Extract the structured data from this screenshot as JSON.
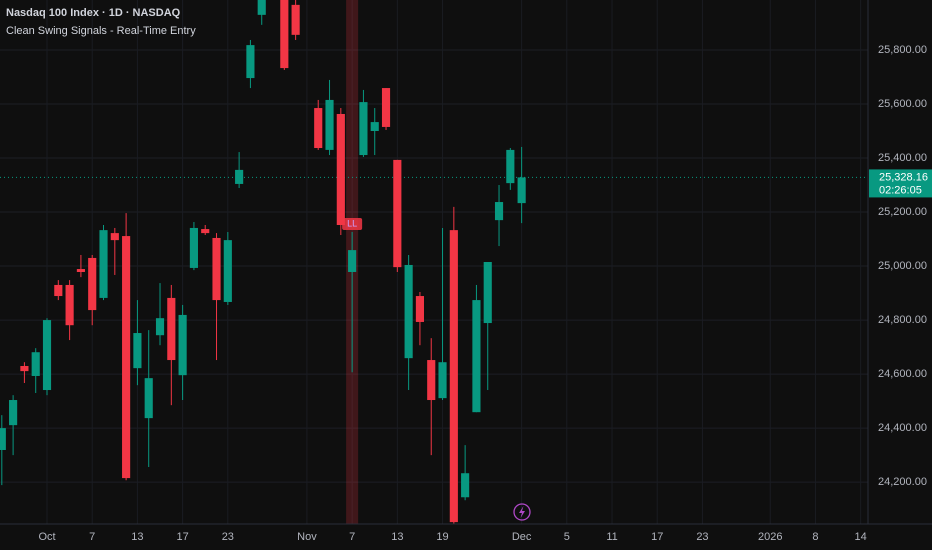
{
  "chart_data": {
    "type": "candlestick",
    "title": "Nasdaq 100 Index · 1D · NASDAQ",
    "subtitle": "Clean Swing Signals - Real-Time Entry",
    "up_color": "#089981",
    "down_color": "#f23645",
    "x": [
      -4,
      -3,
      -2,
      -1,
      0,
      1,
      2,
      3,
      4,
      5,
      6,
      7,
      8,
      9,
      10,
      11,
      12,
      13,
      14,
      15,
      16,
      17,
      18,
      19,
      21,
      22,
      24,
      25,
      26,
      27,
      28,
      29,
      30,
      31,
      32,
      33,
      34,
      35,
      36,
      37,
      38,
      39,
      40,
      41,
      42
    ],
    "open": [
      24319,
      24411,
      24630,
      24593,
      24541,
      24930,
      24930,
      24989,
      25030,
      24882,
      25122,
      25111,
      24622,
      24437,
      24744,
      24882,
      24596,
      24993,
      25137,
      25104,
      24867,
      25304,
      25696,
      25930,
      26000,
      25967,
      25585,
      25430,
      25563,
      24978,
      25411,
      25500,
      25659,
      25393,
      24659,
      24889,
      24652,
      24511,
      25133,
      24144,
      24459,
      24789,
      25170,
      25307,
      25233
    ],
    "high": [
      24448,
      24522,
      24644,
      24696,
      24807,
      24948,
      24948,
      25041,
      25041,
      25152,
      25141,
      25196,
      24874,
      24763,
      24937,
      24930,
      24856,
      25163,
      25152,
      25122,
      25126,
      25422,
      25837,
      26010,
      26050,
      26010,
      25615,
      25689,
      25585,
      25126,
      25652,
      25585,
      25659,
      25393,
      25041,
      24904,
      24733,
      25141,
      25219,
      24337,
      24930,
      25015,
      25300,
      25437,
      25441
    ],
    "low": [
      24189,
      24300,
      24567,
      24530,
      24522,
      24874,
      24726,
      24959,
      24781,
      24874,
      24967,
      24207,
      24559,
      24256,
      24707,
      24485,
      24504,
      24985,
      25115,
      24652,
      24856,
      25289,
      25659,
      25893,
      25726,
      25837,
      25430,
      25411,
      25115,
      24607,
      25404,
      25411,
      25504,
      24978,
      24541,
      24707,
      24300,
      24504,
      24045,
      24133,
      24459,
      24541,
      25074,
      25282,
      25159
    ],
    "close": [
      24400,
      24504,
      24611,
      24681,
      24800,
      24889,
      24781,
      24978,
      24837,
      25133,
      25096,
      24215,
      24752,
      24585,
      24807,
      24652,
      24819,
      25141,
      25122,
      24874,
      25096,
      25356,
      25818,
      26000,
      25733,
      25856,
      25437,
      25615,
      25152,
      25059,
      25607,
      25533,
      25515,
      24996,
      25004,
      24793,
      24504,
      24644,
      24052,
      24233,
      24874,
      25015,
      25237,
      25430,
      25328.16
    ],
    "last_price": {
      "value": 25328.16,
      "label": "25,328.16"
    },
    "countdown": "02:26:05",
    "signals": [
      {
        "x": 27,
        "text": "LL"
      }
    ],
    "xlim": [
      -4.16,
      72.65
    ],
    "ylim": [
      24045,
      25985
    ],
    "grid": true,
    "xticks": [
      {
        "value": 0,
        "label": "Oct"
      },
      {
        "value": 4,
        "label": "7"
      },
      {
        "value": 8,
        "label": "13"
      },
      {
        "value": 12,
        "label": "17"
      },
      {
        "value": 16,
        "label": "23"
      },
      {
        "value": 23,
        "label": "Nov"
      },
      {
        "value": 27,
        "label": "7"
      },
      {
        "value": 31,
        "label": "13"
      },
      {
        "value": 35,
        "label": "19"
      },
      {
        "value": 42,
        "label": "Dec"
      },
      {
        "value": 46,
        "label": "5"
      },
      {
        "value": 50,
        "label": "11"
      },
      {
        "value": 54,
        "label": "17"
      },
      {
        "value": 58,
        "label": "23"
      },
      {
        "value": 64,
        "label": "2026"
      },
      {
        "value": 68,
        "label": "8"
      },
      {
        "value": 72,
        "label": "14"
      }
    ],
    "yticks": [
      {
        "value": 24200,
        "label": "24,200.00"
      },
      {
        "value": 24400,
        "label": "24,400.00"
      },
      {
        "value": 24600,
        "label": "24,600.00"
      },
      {
        "value": 24800,
        "label": "24,800.00"
      },
      {
        "value": 25000,
        "label": "25,000.00"
      },
      {
        "value": 25200,
        "label": "25,200.00"
      },
      {
        "value": 25400,
        "label": "25,400.00"
      },
      {
        "value": 25600,
        "label": "25,600.00"
      },
      {
        "value": 25800,
        "label": "25,800.00"
      }
    ]
  }
}
